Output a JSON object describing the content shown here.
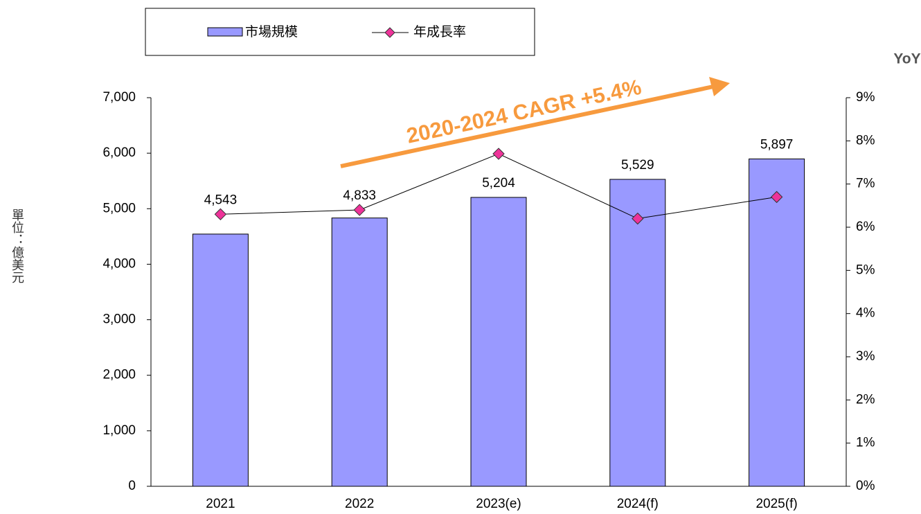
{
  "chart_data": {
    "type": "bar-line",
    "y_label": "單位：億美元",
    "y2_label": "YoY",
    "annotation": "2020-2024 CAGR +5.4%",
    "categories": [
      "2021",
      "2022",
      "2023(e)",
      "2024(f)",
      "2025(f)"
    ],
    "series": [
      {
        "name": "市場規模",
        "type": "bar",
        "color": "#9999ff",
        "values": [
          4543,
          4833,
          5204,
          5529,
          5897
        ],
        "value_labels": [
          "4,543",
          "4,833",
          "5,204",
          "5,529",
          "5,897"
        ]
      },
      {
        "name": "年成長率",
        "type": "line",
        "axis": "y2",
        "color": "#ee3399",
        "values": [
          6.3,
          6.4,
          7.7,
          6.2,
          6.7
        ]
      }
    ],
    "ylim": [
      0,
      7000
    ],
    "yticks": [
      {
        "value": 0,
        "label": "0"
      },
      {
        "value": 1000,
        "label": "1,000"
      },
      {
        "value": 2000,
        "label": "2,000"
      },
      {
        "value": 3000,
        "label": "3,000"
      },
      {
        "value": 4000,
        "label": "4,000"
      },
      {
        "value": 5000,
        "label": "5,000"
      },
      {
        "value": 6000,
        "label": "6,000"
      },
      {
        "value": 7000,
        "label": "7,000"
      }
    ],
    "y2lim": [
      0,
      9
    ],
    "y2ticks": [
      {
        "value": 0,
        "label": "0%"
      },
      {
        "value": 1,
        "label": "1%"
      },
      {
        "value": 2,
        "label": "2%"
      },
      {
        "value": 3,
        "label": "3%"
      },
      {
        "value": 4,
        "label": "4%"
      },
      {
        "value": 5,
        "label": "5%"
      },
      {
        "value": 6,
        "label": "6%"
      },
      {
        "value": 7,
        "label": "7%"
      },
      {
        "value": 8,
        "label": "8%"
      },
      {
        "value": 9,
        "label": "9%"
      }
    ],
    "annotation_color": "#f79a3e",
    "grid": false
  }
}
